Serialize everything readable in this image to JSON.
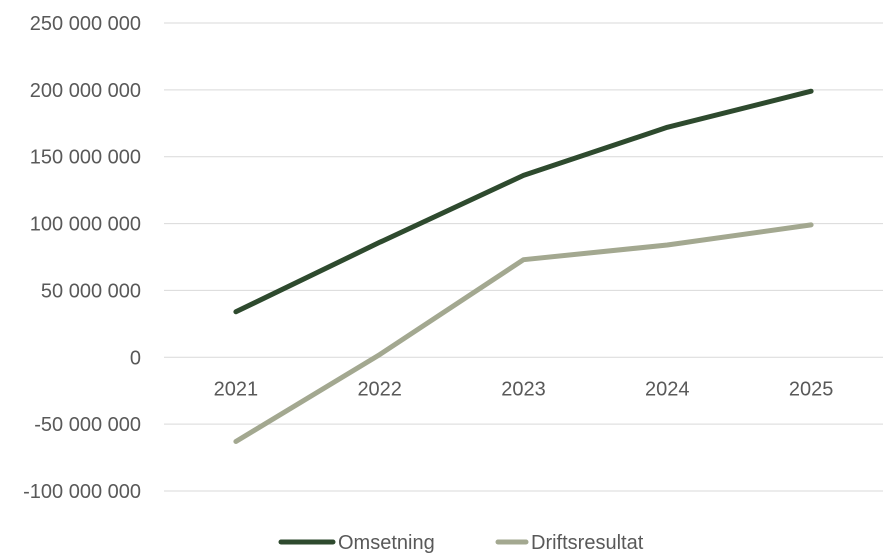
{
  "chart_data": {
    "type": "line",
    "categories": [
      "2021",
      "2022",
      "2023",
      "2024",
      "2025"
    ],
    "series": [
      {
        "name": "Omsetning",
        "color": "#2e4a2e",
        "values": [
          34000000,
          86000000,
          136000000,
          172000000,
          199000000
        ]
      },
      {
        "name": "Driftsresultat",
        "color": "#a3a890",
        "values": [
          -63000000,
          2000000,
          73000000,
          84000000,
          99000000
        ]
      }
    ],
    "y_ticks": [
      "250 000 000",
      "200 000 000",
      "150 000 000",
      "100 000 000",
      "50 000 000",
      "0",
      "-50 000 000",
      "-100 000 000"
    ],
    "ylim": [
      -100000000,
      250000000
    ],
    "grid": true,
    "legend_position": "bottom",
    "gridline_color": "#d9d9d9",
    "title": "",
    "xlabel": "",
    "ylabel": ""
  }
}
